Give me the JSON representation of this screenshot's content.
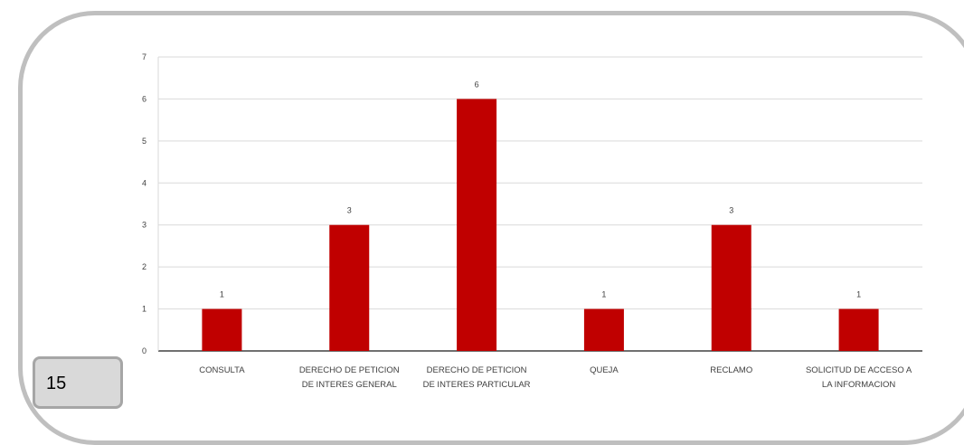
{
  "page_number": "15",
  "colors": {
    "bar": "#c00000",
    "grid": "#d9d9d9",
    "axis": "#404040",
    "frame": "#bfbfbf"
  },
  "chart_data": {
    "type": "bar",
    "title": "",
    "xlabel": "",
    "ylabel": "",
    "ylim": [
      0,
      7
    ],
    "yticks": [
      0,
      1,
      2,
      3,
      4,
      5,
      6,
      7
    ],
    "grid": true,
    "categories": [
      [
        "CONSULTA"
      ],
      [
        "DERECHO DE PETICION",
        "DE INTERES GENERAL"
      ],
      [
        "DERECHO DE PETICION",
        "DE INTERES PARTICULAR"
      ],
      [
        "QUEJA"
      ],
      [
        "RECLAMO"
      ],
      [
        "SOLICITUD DE ACCESO A",
        "LA INFORMACION"
      ]
    ],
    "values": [
      1,
      3,
      6,
      1,
      3,
      1
    ]
  }
}
